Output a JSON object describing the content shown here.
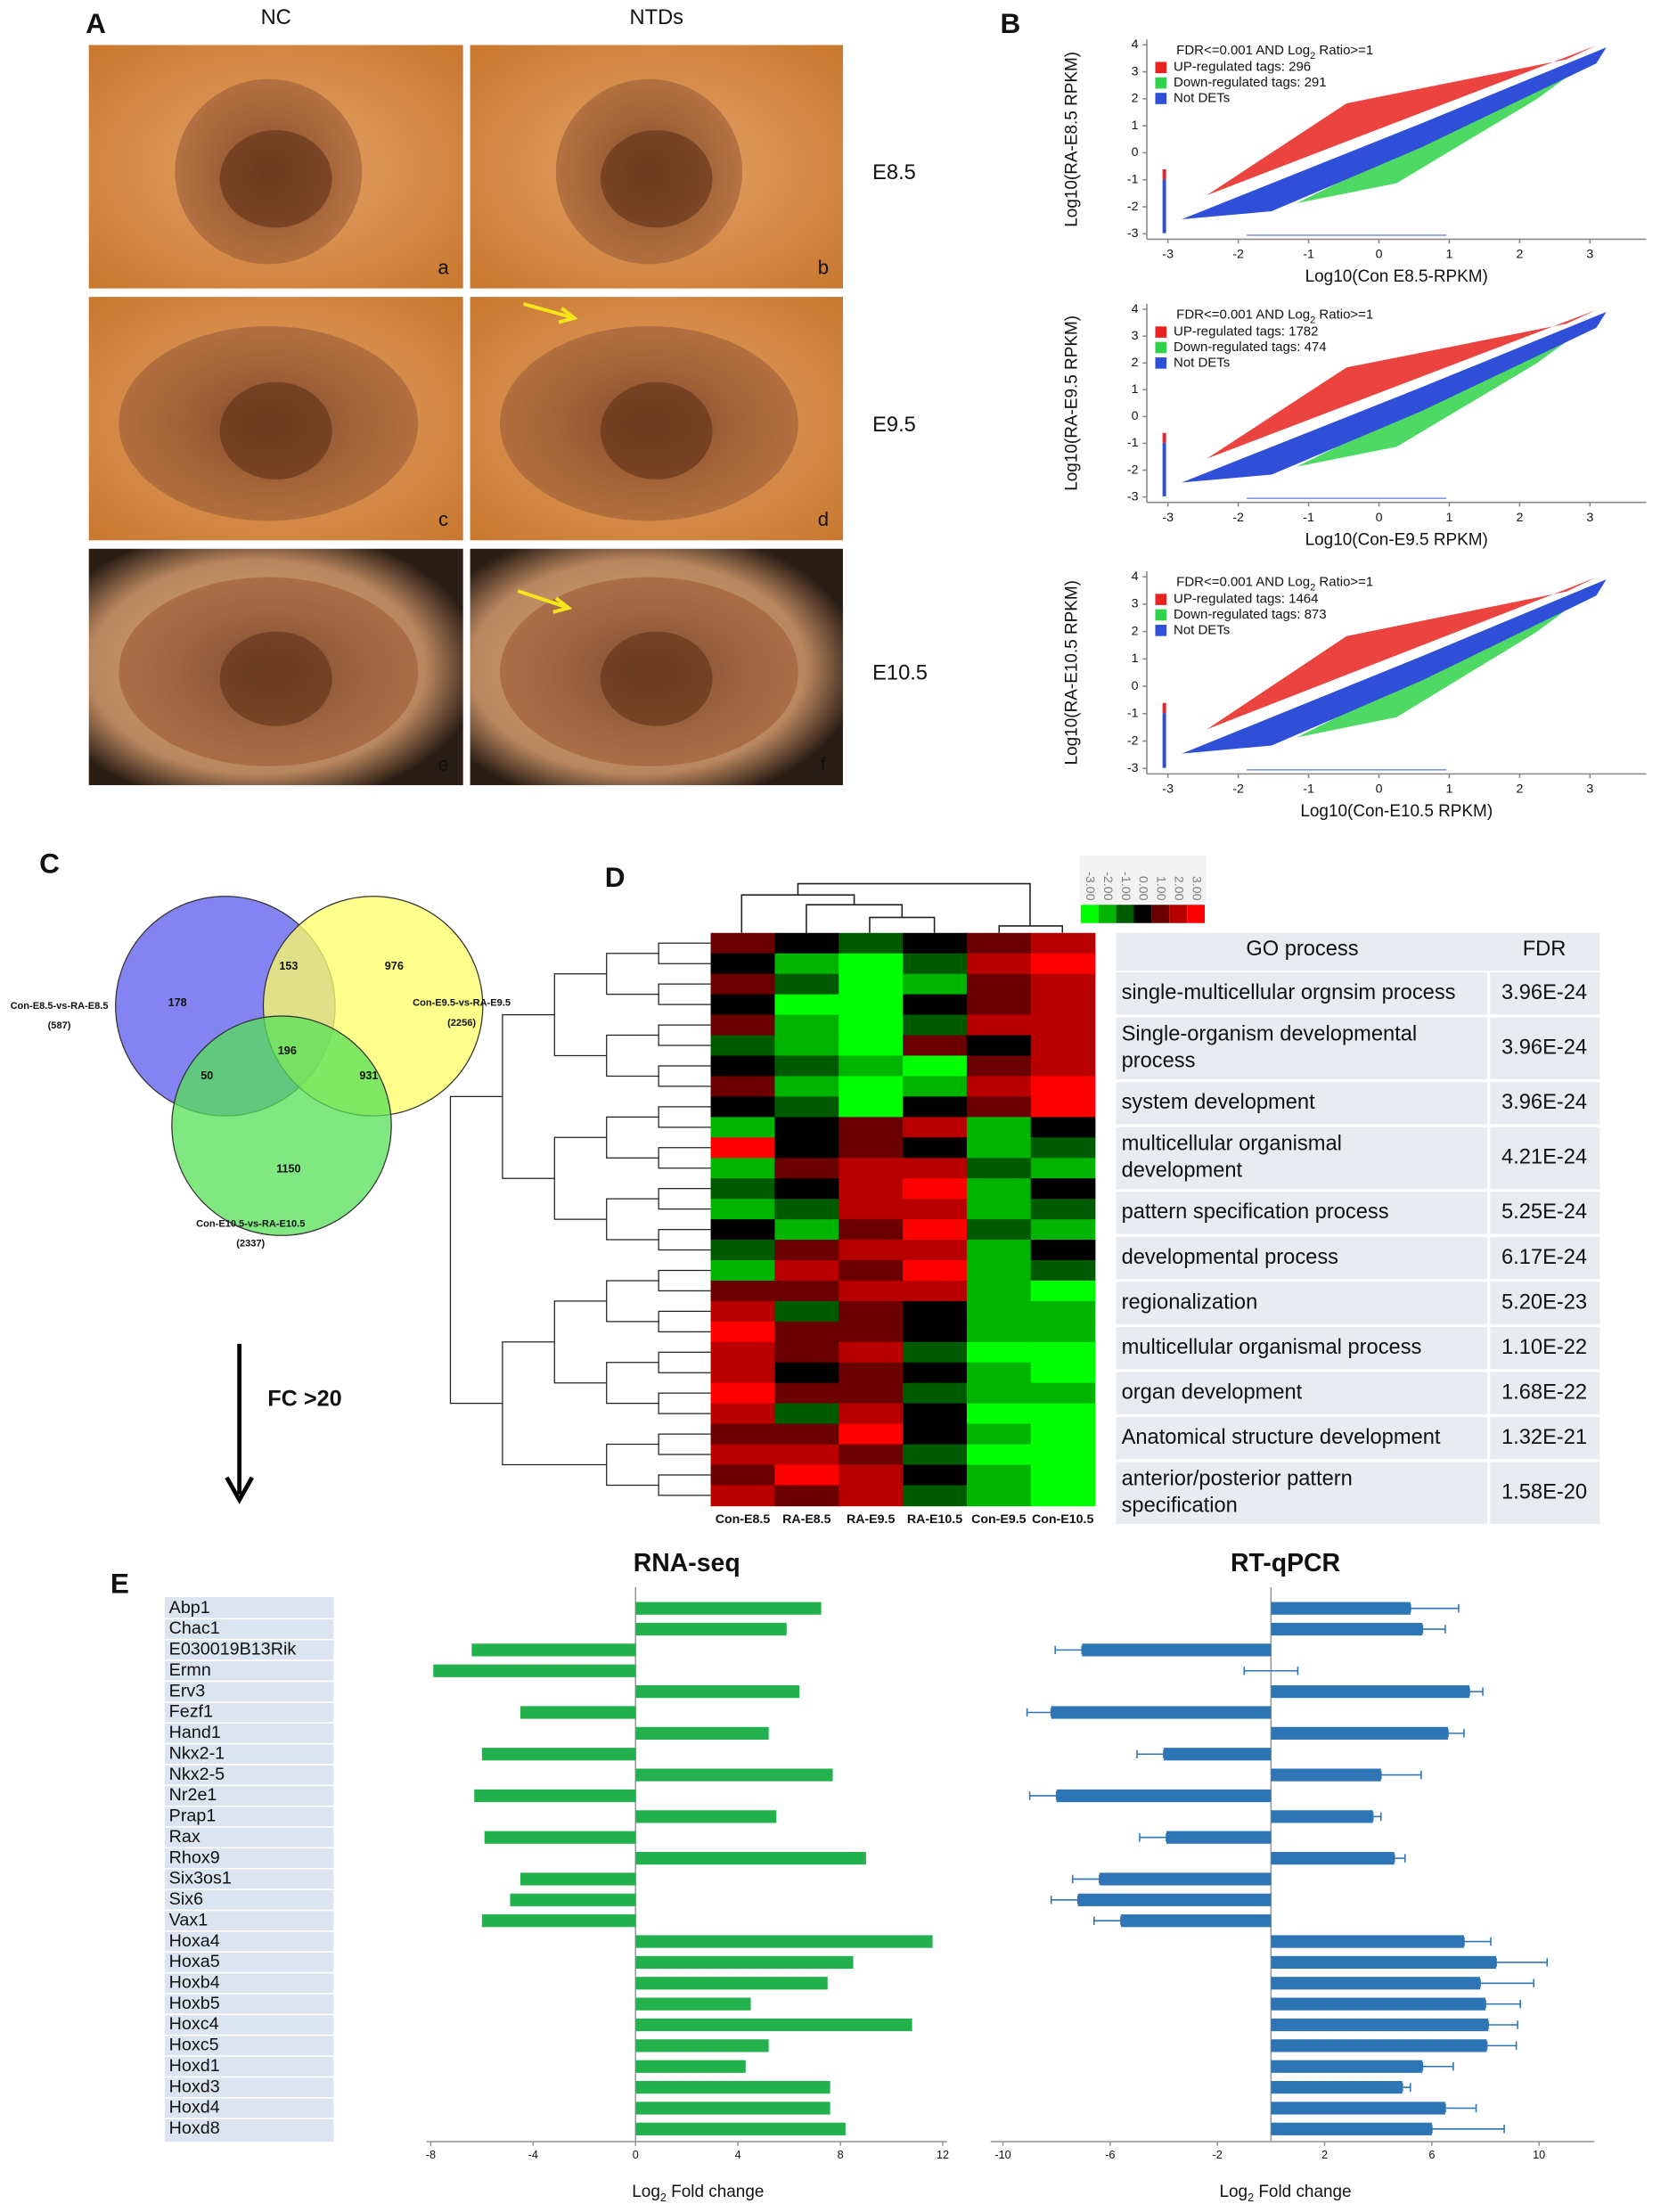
{
  "panel_a": {
    "letter": "A",
    "columns": [
      "NC",
      "NTDs"
    ],
    "stages": [
      "E8.5",
      "E9.5",
      "E10.5"
    ],
    "images": [
      "a",
      "b",
      "c",
      "d",
      "e",
      "f"
    ]
  },
  "panel_b": {
    "letter": "B",
    "plots": [
      {
        "xlabel": "Log10(Con E8.5-RPKM)",
        "ylabel": "Log10(RA-E8.5 RPKM)",
        "legend_title": [
          "FDR<=0.001 AND  Log",
          "2",
          " Ratio>=1"
        ],
        "legend": [
          {
            "label": "UP-regulated tags: 296",
            "color": "#e8231f"
          },
          {
            "label": "Down-regulated tags: 291",
            "color": "#2fd24a"
          },
          {
            "label": "Not DETs",
            "color": "#2f4fd8"
          }
        ],
        "xlim": [
          -3.3,
          3.8
        ],
        "ylim": [
          -3.2,
          4.2
        ],
        "xticks": [
          -3,
          -2,
          -1,
          0,
          1,
          2,
          3
        ],
        "yticks": [
          -3,
          -2,
          -1,
          0,
          1,
          2,
          3,
          4
        ]
      },
      {
        "xlabel": "Log10(Con-E9.5 RPKM)",
        "ylabel": "Log10(RA-E9.5 RPKM)",
        "legend_title": [
          "FDR<=0.001 AND  Log",
          "2",
          " Ratio>=1"
        ],
        "legend": [
          {
            "label": "UP-regulated tags: 1782",
            "color": "#e8231f"
          },
          {
            "label": "Down-regulated tags: 474",
            "color": "#2fd24a"
          },
          {
            "label": "Not DETs",
            "color": "#2f4fd8"
          }
        ],
        "xlim": [
          -3.3,
          3.8
        ],
        "ylim": [
          -3.2,
          4.2
        ],
        "xticks": [
          -3,
          -2,
          -1,
          0,
          1,
          2,
          3
        ],
        "yticks": [
          -3,
          -2,
          -1,
          0,
          1,
          2,
          3,
          4
        ]
      },
      {
        "xlabel": "Log10(Con-E10.5 RPKM)",
        "ylabel": "Log10(RA-E10.5 RPKM)",
        "legend_title": [
          "FDR<=0.001 AND  Log",
          "2",
          " Ratio>=1"
        ],
        "legend": [
          {
            "label": "UP-regulated tags: 1464",
            "color": "#e8231f"
          },
          {
            "label": "Down-regulated tags: 873",
            "color": "#2fd24a"
          },
          {
            "label": "Not DETs",
            "color": "#2f4fd8"
          }
        ],
        "xlim": [
          -3.3,
          3.8
        ],
        "ylim": [
          -3.2,
          4.2
        ],
        "xticks": [
          -3,
          -2,
          -1,
          0,
          1,
          2,
          3
        ],
        "yticks": [
          -3,
          -2,
          -1,
          0,
          1,
          2,
          3,
          4
        ]
      }
    ]
  },
  "panel_c": {
    "letter": "C",
    "sets": [
      {
        "label": "Con-E8.5-vs-RA-E8.5",
        "total": "(587)",
        "color": "#5a5aec",
        "text_color": "#1f6fc8"
      },
      {
        "label": "Con-E9.5-vs-RA-E9.5",
        "total": "(2256)",
        "color": "#ffff66",
        "text_color": "#e6a020"
      },
      {
        "label": "Con-E10.5-vs-RA-E10.5",
        "total": "(2337)",
        "color": "#55e055",
        "text_color": "#1f9f3f"
      }
    ],
    "regions": [
      178,
      153,
      976,
      196,
      50,
      931,
      1150
    ],
    "filter": "FC >20"
  },
  "panel_d": {
    "letter": "D",
    "columns": [
      "Con-E8.5",
      "RA-E8.5",
      "RA-E9.5",
      "RA-E10.5",
      "Con-E9.5",
      "Con-E10.5"
    ],
    "colorbar": {
      "ticks": [
        {
          "value": -3,
          "label": "-3.00"
        },
        {
          "value": -2,
          "label": "-2.00"
        },
        {
          "value": -1,
          "label": "-1.00"
        },
        {
          "value": 0,
          "label": "0.00"
        },
        {
          "value": 1,
          "label": "1.00"
        },
        {
          "value": 2,
          "label": "2.00"
        },
        {
          "value": 3,
          "label": "3.00"
        }
      ],
      "colors": [
        "#00ff00",
        "#00b400",
        "#005a00",
        "#000000",
        "#6a0000",
        "#b80000",
        "#ff0000"
      ]
    },
    "table": {
      "header": [
        "GO process",
        "FDR"
      ],
      "rows": [
        {
          "process": [
            "single-multicellular orgnsim process"
          ],
          "fdr": "3.96E-24"
        },
        {
          "process": [
            "Single-organism developmental",
            "process"
          ],
          "fdr": "3.96E-24"
        },
        {
          "process": [
            "system development"
          ],
          "fdr": "3.96E-24"
        },
        {
          "process": [
            "multicellular organismal",
            "development"
          ],
          "fdr": "4.21E-24"
        },
        {
          "process": [
            "pattern specification process"
          ],
          "fdr": "5.25E-24"
        },
        {
          "process": [
            "developmental process"
          ],
          "fdr": "6.17E-24"
        },
        {
          "process": [
            "regionalization"
          ],
          "fdr": "5.20E-23"
        },
        {
          "process": [
            "multicellular organismal process"
          ],
          "fdr": "1.10E-22"
        },
        {
          "process": [
            "organ development"
          ],
          "fdr": "1.68E-22"
        },
        {
          "process": [
            "Anatomical structure  development"
          ],
          "fdr": "1.32E-21"
        },
        {
          "process": [
            "anterior/posterior pattern",
            "specification"
          ],
          "fdr": "1.58E-20"
        }
      ]
    }
  },
  "panel_e": {
    "letter": "E"
  },
  "chart_data": [
    {
      "type": "bar",
      "orientation": "horizontal",
      "title": "RNA-seq",
      "color": "#22b14c",
      "categories": [
        "Abp1",
        "Chac1",
        "E030019B13Rik",
        "Ermn",
        "Erv3",
        "Fezf1",
        "Hand1",
        "Nkx2-1",
        "Nkx2-5",
        "Nr2e1",
        "Prap1",
        "Rax",
        "Rhox9",
        "Six3os1",
        "Six6",
        "Vax1",
        "Hoxa4",
        "Hoxa5",
        "Hoxb4",
        "Hoxb5",
        "Hoxc4",
        "Hoxc5",
        "Hoxd1",
        "Hoxd3",
        "Hoxd4",
        "Hoxd8"
      ],
      "values": [
        7.25,
        5.9,
        -6.4,
        -7.9,
        6.4,
        -4.5,
        5.2,
        -6.0,
        7.7,
        -6.3,
        5.5,
        -5.9,
        9.0,
        -4.5,
        -4.9,
        -6.0,
        11.6,
        8.5,
        7.5,
        4.5,
        10.8,
        5.2,
        4.3,
        7.6,
        7.6,
        8.2
      ],
      "xlim": [
        -8,
        12
      ],
      "xticks": [
        -8,
        -4,
        0,
        4,
        8,
        12
      ],
      "xlabel": [
        "Log",
        "2",
        " Fold change"
      ]
    },
    {
      "type": "bar",
      "orientation": "horizontal",
      "title": "RT-qPCR",
      "color": "#2e75b6",
      "values": [
        5.2,
        5.65,
        -7.05,
        0,
        7.4,
        -8.2,
        6.6,
        -4.0,
        4.1,
        -8.0,
        3.8,
        -3.9,
        4.6,
        -6.4,
        -7.2,
        -5.6,
        7.2,
        8.4,
        7.8,
        8.0,
        8.1,
        8.05,
        5.65,
        4.9,
        6.5,
        6.0
      ],
      "errors": [
        1.8,
        0.85,
        1.0,
        1.0,
        0.5,
        0.9,
        0.6,
        1.0,
        1.5,
        1.0,
        0.3,
        1.0,
        0.4,
        1.0,
        1.0,
        1.0,
        1.0,
        1.9,
        2.0,
        1.3,
        1.1,
        1.1,
        1.15,
        0.3,
        1.15,
        2.7
      ],
      "xlim": [
        -10.3,
        11.9
      ],
      "xticks": [
        -10,
        -6,
        -2,
        2,
        6,
        10
      ],
      "xlabel": [
        "Log",
        "2",
        " Fold change"
      ]
    }
  ]
}
